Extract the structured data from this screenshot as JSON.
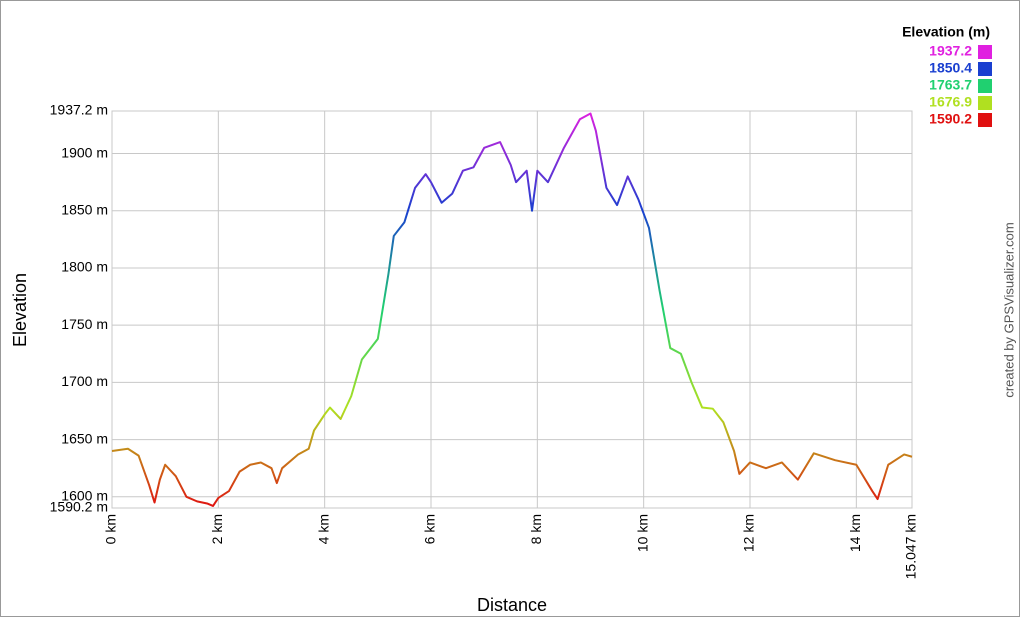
{
  "chart_data": {
    "type": "line",
    "x_label": "Distance",
    "y_label": "Elevation",
    "credit": "created by GPSVisualizer.com",
    "legend_title": "Elevation (m)",
    "color_scale": [
      {
        "value": 1937.2,
        "color": "#e020e0"
      },
      {
        "value": 1850.4,
        "color": "#1a3fd0"
      },
      {
        "value": 1763.7,
        "color": "#20d070"
      },
      {
        "value": 1676.9,
        "color": "#b0e020"
      },
      {
        "value": 1590.2,
        "color": "#e01010"
      }
    ],
    "xlim": [
      0,
      15.047
    ],
    "ylim": [
      1590.2,
      1937.2
    ],
    "xticks": [
      {
        "value": 0,
        "label": "0 km"
      },
      {
        "value": 2,
        "label": "2 km"
      },
      {
        "value": 4,
        "label": "4 km"
      },
      {
        "value": 6,
        "label": "6 km"
      },
      {
        "value": 8,
        "label": "8 km"
      },
      {
        "value": 10,
        "label": "10 km"
      },
      {
        "value": 12,
        "label": "12 km"
      },
      {
        "value": 14,
        "label": "14 km"
      },
      {
        "value": 15.047,
        "label": "15.047 km"
      }
    ],
    "yticks": [
      {
        "value": 1590.2,
        "label": "1590.2 m"
      },
      {
        "value": 1600,
        "label": "1600 m"
      },
      {
        "value": 1650,
        "label": "1650 m"
      },
      {
        "value": 1700,
        "label": "1700 m"
      },
      {
        "value": 1750,
        "label": "1750 m"
      },
      {
        "value": 1800,
        "label": "1800 m"
      },
      {
        "value": 1850,
        "label": "1850 m"
      },
      {
        "value": 1900,
        "label": "1900 m"
      },
      {
        "value": 1937.2,
        "label": "1937.2 m"
      }
    ],
    "grid": true,
    "x": [
      0.0,
      0.3,
      0.5,
      0.7,
      0.8,
      0.9,
      1.0,
      1.2,
      1.4,
      1.6,
      1.8,
      1.9,
      2.0,
      2.2,
      2.4,
      2.6,
      2.8,
      3.0,
      3.1,
      3.2,
      3.5,
      3.7,
      3.8,
      4.0,
      4.1,
      4.3,
      4.5,
      4.7,
      4.9,
      5.0,
      5.2,
      5.3,
      5.5,
      5.7,
      5.9,
      6.0,
      6.2,
      6.4,
      6.6,
      6.8,
      7.0,
      7.3,
      7.5,
      7.6,
      7.8,
      7.9,
      8.0,
      8.2,
      8.5,
      8.8,
      9.0,
      9.1,
      9.3,
      9.5,
      9.7,
      9.9,
      10.1,
      10.3,
      10.5,
      10.7,
      10.9,
      11.1,
      11.3,
      11.5,
      11.7,
      11.8,
      12.0,
      12.3,
      12.6,
      12.9,
      13.2,
      13.6,
      14.0,
      14.3,
      14.4,
      14.6,
      14.9,
      15.047
    ],
    "values": [
      1640,
      1642,
      1636,
      1610,
      1595,
      1615,
      1628,
      1618,
      1600,
      1596,
      1594,
      1592,
      1599,
      1605,
      1622,
      1628,
      1630,
      1625,
      1612,
      1625,
      1637,
      1642,
      1658,
      1672,
      1678,
      1668,
      1688,
      1720,
      1732,
      1738,
      1795,
      1828,
      1840,
      1870,
      1882,
      1875,
      1857,
      1865,
      1885,
      1888,
      1905,
      1910,
      1890,
      1875,
      1885,
      1850,
      1885,
      1875,
      1905,
      1930,
      1935,
      1920,
      1870,
      1855,
      1880,
      1860,
      1835,
      1780,
      1730,
      1725,
      1700,
      1678,
      1677,
      1665,
      1640,
      1620,
      1630,
      1625,
      1630,
      1615,
      1638,
      1632,
      1628,
      1605,
      1598,
      1628,
      1637,
      1635
    ]
  }
}
